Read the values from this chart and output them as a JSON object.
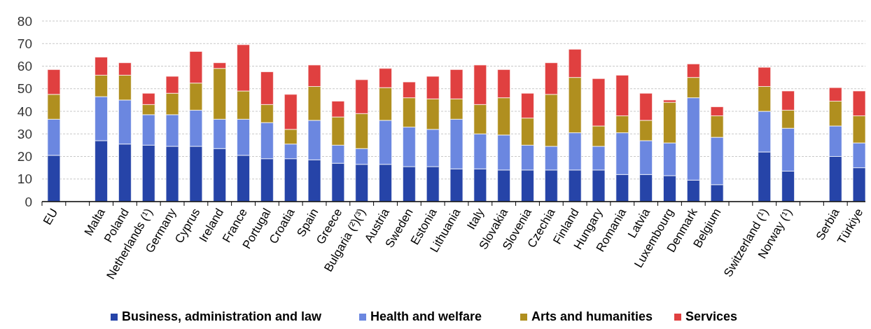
{
  "chart_data": {
    "type": "bar",
    "stacked": true,
    "categories": [
      "EU",
      null,
      "Malta",
      "Poland",
      "Netherlands (¹)",
      "Germany",
      "Cyprus",
      "Ireland",
      "France",
      "Portugal",
      "Croatia",
      "Spain",
      "Greece",
      "Bulgaria (²)(³)",
      "Austria",
      "Sweden",
      "Estonia",
      "Lithuania",
      "Italy",
      "Slovakia",
      "Slovenia",
      "Czechia",
      "Finland",
      "Hungary",
      "Romania",
      "Latvia",
      "Luxembourg",
      "Denmark",
      "Belgium",
      null,
      "Switzerland (¹)",
      "Norway (¹)",
      null,
      "Serbia",
      "Türkiye"
    ],
    "series": [
      {
        "name": "Business, administration and law",
        "color": "#2644a8",
        "values": [
          20.5,
          null,
          27,
          25.5,
          25,
          24.5,
          24.5,
          23.5,
          20.5,
          19,
          19,
          18.5,
          17,
          16.5,
          16.5,
          15.5,
          15.5,
          14.5,
          14.5,
          14,
          14,
          14,
          14,
          14,
          12,
          12,
          11.5,
          9.5,
          7.5,
          null,
          22,
          13.5,
          null,
          20,
          15
        ]
      },
      {
        "name": "Health and welfare",
        "color": "#6b87e0",
        "values": [
          16,
          null,
          19.5,
          19.5,
          13.5,
          14,
          16,
          13,
          16,
          16,
          6.5,
          17.5,
          8,
          7,
          19.5,
          17.5,
          16.5,
          22,
          15.5,
          15.5,
          11,
          10.5,
          16.5,
          10.5,
          18.5,
          15,
          14.5,
          36.5,
          21,
          null,
          18,
          19,
          null,
          13.5,
          11
        ]
      },
      {
        "name": "Arts and humanities",
        "color": "#b08f1f",
        "values": [
          11,
          null,
          9.5,
          11,
          4.5,
          9.5,
          12,
          22.5,
          12.5,
          8,
          6.5,
          15,
          12.5,
          15.5,
          14.5,
          13,
          13.5,
          9,
          13,
          16.5,
          12,
          23,
          24.5,
          9,
          7.5,
          9,
          18,
          9,
          9.5,
          null,
          11,
          8,
          null,
          11,
          12
        ]
      },
      {
        "name": "Services",
        "color": "#e04040",
        "values": [
          11,
          null,
          8,
          5.5,
          5,
          7.5,
          14,
          2.5,
          20.5,
          14.5,
          15.5,
          9.5,
          7,
          15,
          8.5,
          7,
          10,
          13,
          17.5,
          12.5,
          11,
          14,
          12.5,
          21,
          18,
          12,
          1,
          6,
          4,
          null,
          8.5,
          8.5,
          null,
          6,
          11
        ]
      }
    ],
    "ylim": [
      0,
      80
    ],
    "yticks": [
      0,
      10,
      20,
      30,
      40,
      50,
      60,
      70,
      80
    ],
    "grid": "y",
    "legend": "bottom"
  }
}
